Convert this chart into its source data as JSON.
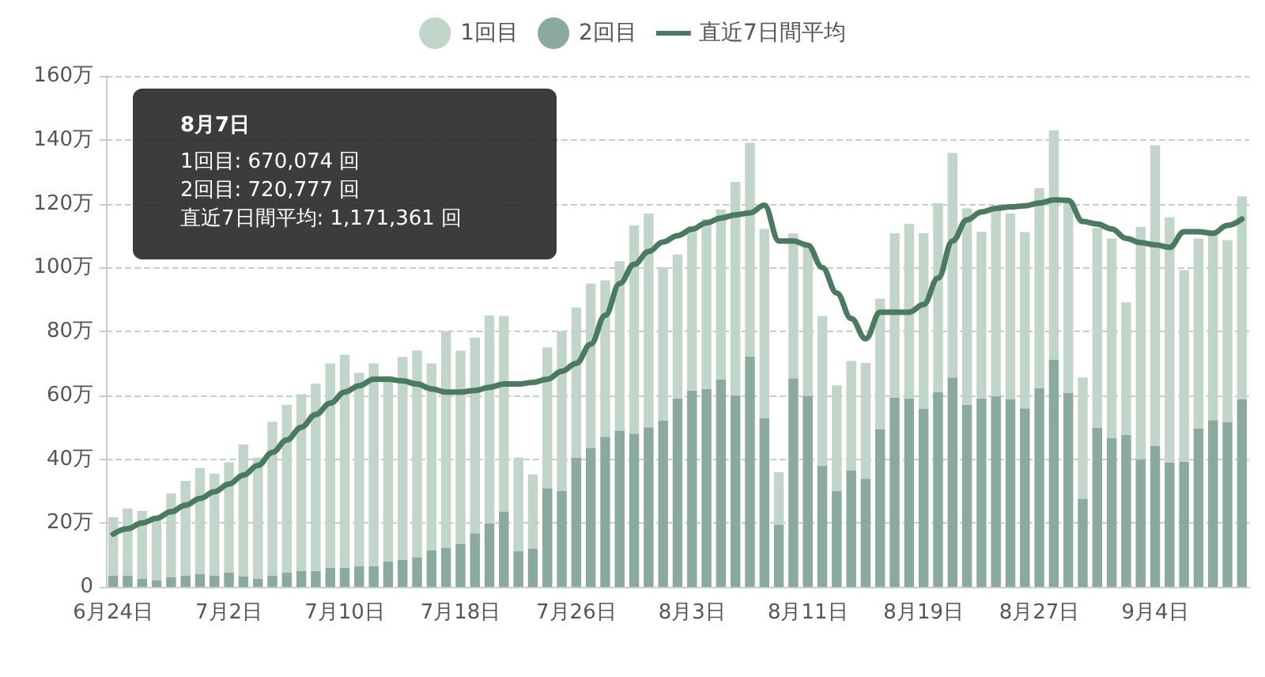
{
  "chart_data": {
    "type": "bar",
    "stacked": true,
    "categories": [
      "6月24日",
      null,
      null,
      null,
      null,
      null,
      null,
      null,
      "7月2日",
      null,
      null,
      null,
      null,
      null,
      null,
      null,
      "7月10日",
      null,
      null,
      null,
      null,
      null,
      null,
      null,
      "7月18日",
      null,
      null,
      null,
      null,
      null,
      null,
      null,
      "7月26日",
      null,
      null,
      null,
      null,
      null,
      null,
      null,
      "8月3日",
      null,
      null,
      null,
      null,
      null,
      null,
      null,
      "8月11日",
      null,
      null,
      null,
      null,
      null,
      null,
      null,
      "8月19日",
      null,
      null,
      null,
      null,
      null,
      null,
      null,
      "8月27日",
      null,
      null,
      null,
      null,
      null,
      null,
      null,
      "9月4日",
      null,
      null,
      null,
      null,
      null,
      null
    ],
    "series": [
      {
        "name": "2回目",
        "color": "#8aaa9e",
        "values": [
          3.6,
          3.6,
          2.5,
          2.0,
          3.1,
          3.6,
          4.1,
          3.6,
          4.5,
          3.3,
          2.5,
          3.6,
          4.5,
          5.0,
          5.0,
          6.0,
          6.0,
          6.5,
          6.5,
          7.9,
          8.5,
          9.3,
          11.4,
          12.3,
          13.4,
          16.8,
          19.8,
          23.5,
          11.2,
          11.9,
          30.9,
          30.1,
          40.5,
          43.5,
          47,
          49,
          48,
          50,
          52,
          59,
          61.5,
          62,
          65,
          60,
          72.1,
          52.9,
          19.5,
          65.3,
          59.8,
          38.0,
          30.1,
          36.4,
          33.9,
          49.3,
          59.2,
          59.0,
          55.7,
          61.0,
          65.6,
          57.0,
          59.0,
          59.7,
          58.7,
          55.9,
          62.3,
          71.1,
          60.8,
          27.6,
          49.9,
          46.6,
          47.6,
          40.0,
          44.1,
          39.0,
          39.2,
          49.6,
          52.2,
          51.6,
          58.7
        ]
      },
      {
        "name": "1回目",
        "color": "#c2d5ca",
        "values": [
          18.2,
          21.0,
          21.3,
          19.5,
          26.2,
          29.6,
          33.1,
          31.9,
          34.5,
          41.3,
          38.0,
          48.1,
          52.5,
          55.3,
          58.6,
          64.0,
          66.7,
          60.5,
          63.5,
          58.1,
          63.5,
          64.7,
          58.6,
          67.7,
          60.6,
          61.2,
          65.2,
          61.3,
          29.3,
          23.3,
          44.1,
          49.9,
          47.0,
          51.5,
          49,
          53,
          65.2,
          66.9,
          48,
          45,
          51.4,
          53.2,
          53.2,
          66.8,
          67.0,
          59.2,
          16.4,
          45.4,
          46.8,
          46.8,
          33.0,
          34.3,
          36.2,
          40.9,
          51.5,
          54.7,
          55.0,
          59.2,
          70.3,
          61.5,
          52.2,
          58.5,
          58.2,
          55.2,
          62.5,
          71.9,
          60.2,
          38.0,
          62.5,
          62.5,
          41.5,
          72.7,
          94.2,
          76.7,
          60.0,
          59.5,
          58.0,
          57.0,
          63.6
        ]
      },
      {
        "name": "直近7日間平均",
        "type": "line",
        "color": "#4a7a60",
        "values": [
          16.5,
          18.2,
          20,
          21.5,
          23.5,
          25.6,
          27.7,
          29.8,
          32.2,
          35,
          38,
          42.1,
          46,
          50,
          54,
          57.5,
          61,
          63,
          65,
          65,
          64.5,
          63.5,
          62,
          61,
          61,
          61.5,
          62.5,
          63.5,
          63.5,
          64,
          65,
          67.5,
          70,
          76,
          85,
          95,
          101,
          105,
          108,
          110,
          112,
          114,
          115.5,
          116.5,
          117.1,
          119.5,
          108.3,
          108.3,
          107,
          100,
          92,
          84,
          77.7,
          86,
          86,
          86,
          88.4,
          96.7,
          108.3,
          114.9,
          117.4,
          118.5,
          119,
          119.3,
          120.2,
          121.2,
          121,
          114.4,
          113.6,
          112.1,
          109.1,
          107.8,
          107.1,
          106.3,
          111.2,
          111.2,
          110.7,
          113.2,
          115.2
        ]
      }
    ],
    "ylim": [
      0,
      160
    ],
    "yticks": [
      0,
      {
        "value": 20,
        "label": "20万"
      },
      {
        "value": 40,
        "label": "40万"
      },
      {
        "value": 60,
        "label": "60万"
      },
      {
        "value": 80,
        "label": "80万"
      },
      {
        "value": 100,
        "label": "100万"
      },
      {
        "value": 120,
        "label": "120万"
      },
      {
        "value": 140,
        "label": "140万"
      },
      {
        "value": 160,
        "label": "160万"
      }
    ],
    "grid": "y",
    "legend": "top",
    "marker": "none",
    "line_style": "solid",
    "annotations": [
      "8月7日",
      "1回目: 670,074 回",
      "2回目: 720,777 回",
      "直近7日間平均: 1,171,361 回"
    ]
  }
}
